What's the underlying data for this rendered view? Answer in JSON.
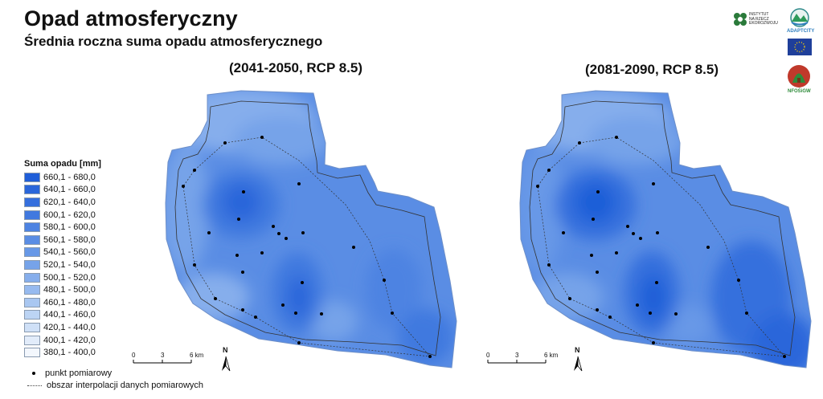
{
  "title": "Opad atmosferyczny",
  "subtitle": "Średnia roczna suma opadu atmosferycznego",
  "periods": [
    "(2041-2050, RCP 8.5)",
    "(2081-2090, RCP 8.5)"
  ],
  "legend": {
    "title": "Suma opadu [mm]",
    "items": [
      {
        "label": "660,1 - 680,0",
        "color": "#1f5ed8"
      },
      {
        "label": "640,1 - 660,0",
        "color": "#2a66da"
      },
      {
        "label": "620,1 - 640,0",
        "color": "#356fdd"
      },
      {
        "label": "600,1 - 620,0",
        "color": "#4179df"
      },
      {
        "label": "580,1 - 600,0",
        "color": "#4d83e2"
      },
      {
        "label": "560,1 - 580,0",
        "color": "#5a8de4"
      },
      {
        "label": "540,1 - 560,0",
        "color": "#6798e7"
      },
      {
        "label": "520,1 - 540,0",
        "color": "#76a3e9"
      },
      {
        "label": "500,1 - 520,0",
        "color": "#86aeec"
      },
      {
        "label": "480,1 - 500,0",
        "color": "#97baef"
      },
      {
        "label": "460,1 - 480,0",
        "color": "#a9c7f1"
      },
      {
        "label": "440,1 - 460,0",
        "color": "#bcd4f4"
      },
      {
        "label": "420,1 - 440,0",
        "color": "#cfe0f7"
      },
      {
        "label": "400,1 - 420,0",
        "color": "#e2ecfa"
      },
      {
        "label": "380,1 - 400,0",
        "color": "#f3f7fd"
      }
    ]
  },
  "key": {
    "point_label": "punkt pomiarowy",
    "area_label": "obszar interpolacji danych pomiarowych"
  },
  "scalebar": {
    "labels": [
      "0",
      "3",
      "6 km"
    ]
  },
  "north": "N",
  "logos": {
    "institute_text": [
      "INSTYTUT",
      "NA RZECZ",
      "EKOROZWOJU"
    ],
    "adaptcity": "ADAPTCITY",
    "nfosigw": "NFOŚiGW"
  }
}
